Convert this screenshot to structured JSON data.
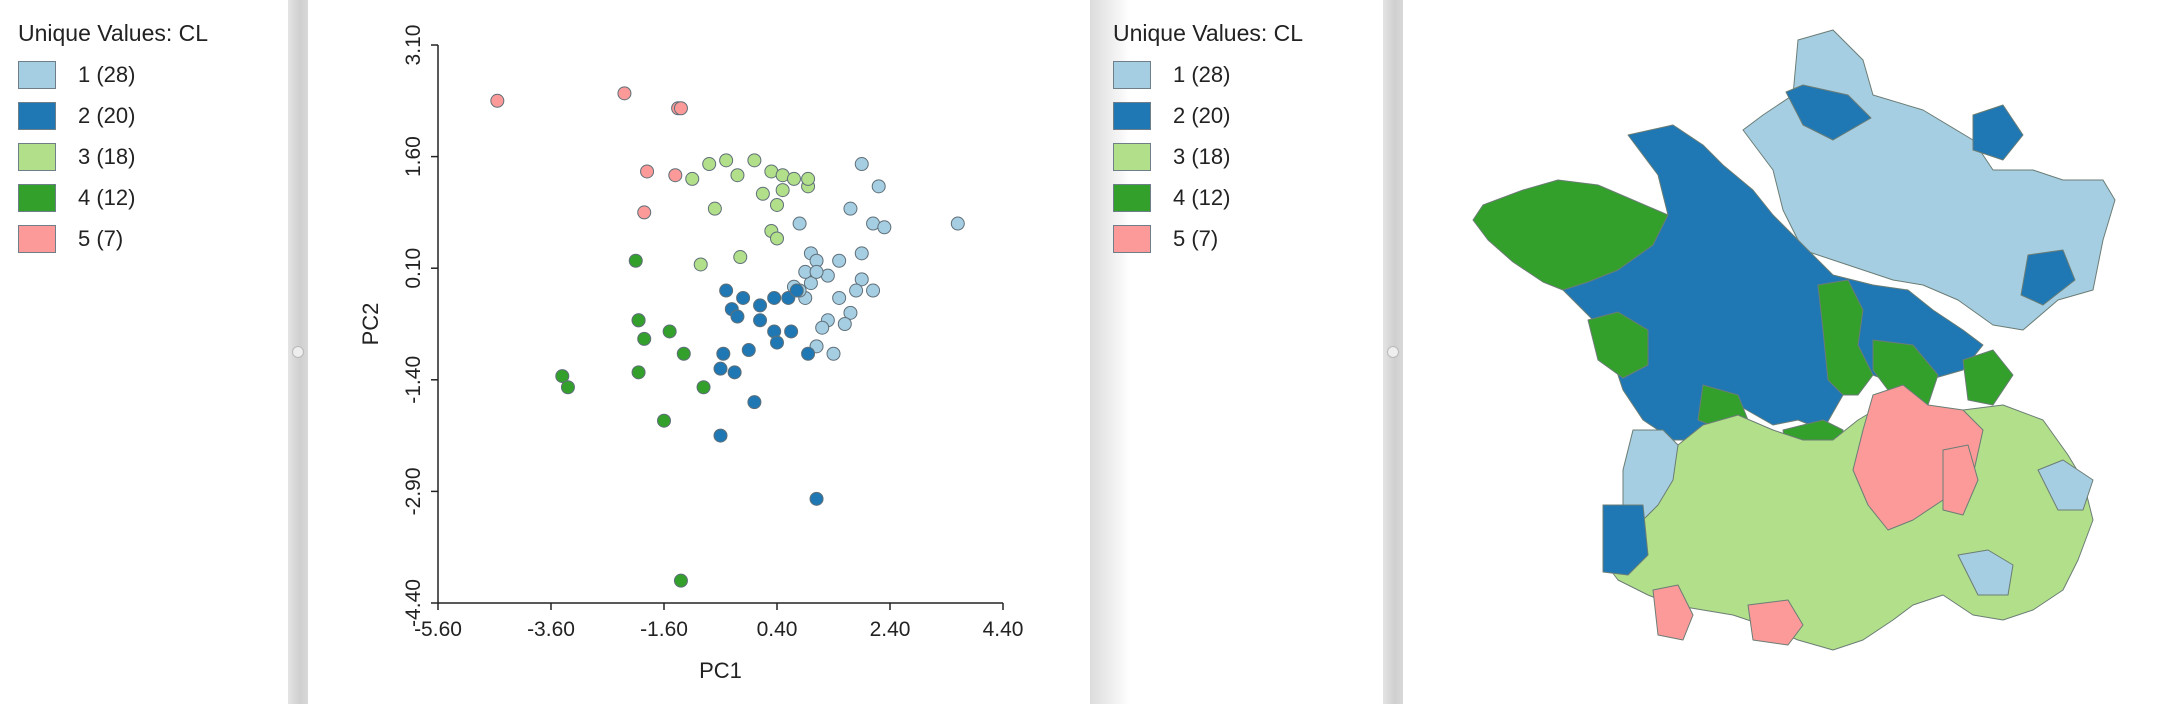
{
  "legend_left": {
    "title": "Unique Values: CL",
    "items": [
      {
        "label": "1 (28)",
        "color": "#a6cee3"
      },
      {
        "label": "2 (20)",
        "color": "#1f78b4"
      },
      {
        "label": "3 (18)",
        "color": "#b2df8a"
      },
      {
        "label": "4 (12)",
        "color": "#33a02c"
      },
      {
        "label": "5 (7)",
        "color": "#fb9a99"
      }
    ]
  },
  "legend_right": {
    "title": "Unique Values: CL",
    "items": [
      {
        "label": "1 (28)",
        "color": "#a6cee3"
      },
      {
        "label": "2 (20)",
        "color": "#1f78b4"
      },
      {
        "label": "3 (18)",
        "color": "#b2df8a"
      },
      {
        "label": "4 (12)",
        "color": "#33a02c"
      },
      {
        "label": "5 (7)",
        "color": "#fb9a99"
      }
    ]
  },
  "chart_data": {
    "type": "scatter",
    "xlabel": "PC1",
    "ylabel": "PC2",
    "xlim": [
      -5.6,
      4.4
    ],
    "ylim": [
      -4.4,
      3.1
    ],
    "x_ticks": [
      "-5.60",
      "-3.60",
      "-1.60",
      "0.40",
      "2.40",
      "4.40"
    ],
    "y_ticks": [
      "-4.40",
      "-2.90",
      "-1.40",
      "0.10",
      "1.60",
      "3.10"
    ],
    "grid": false,
    "series": [
      {
        "cluster": 1,
        "color": "#a6cee3",
        "points": [
          [
            1.9,
            1.5
          ],
          [
            2.2,
            1.2
          ],
          [
            1.7,
            0.9
          ],
          [
            3.6,
            0.7
          ],
          [
            2.1,
            0.7
          ],
          [
            2.3,
            0.65
          ],
          [
            0.8,
            0.7
          ],
          [
            1.9,
            0.3
          ],
          [
            1.5,
            0.2
          ],
          [
            1.0,
            0.3
          ],
          [
            1.1,
            0.2
          ],
          [
            1.3,
            0.0
          ],
          [
            1.9,
            -0.05
          ],
          [
            2.1,
            -0.2
          ],
          [
            1.8,
            -0.2
          ],
          [
            1.5,
            -0.3
          ],
          [
            0.9,
            -0.3
          ],
          [
            1.3,
            -0.6
          ],
          [
            1.2,
            -0.7
          ],
          [
            1.7,
            -0.5
          ],
          [
            1.6,
            -0.65
          ],
          [
            0.8,
            -0.2
          ],
          [
            1.0,
            -0.1
          ],
          [
            0.9,
            0.05
          ],
          [
            1.4,
            -1.05
          ],
          [
            1.1,
            -0.95
          ],
          [
            0.7,
            -0.15
          ],
          [
            1.1,
            0.05
          ]
        ]
      },
      {
        "cluster": 2,
        "color": "#1f78b4",
        "points": [
          [
            -0.5,
            -0.2
          ],
          [
            -0.4,
            -0.45
          ],
          [
            -0.3,
            -0.55
          ],
          [
            -0.2,
            -0.3
          ],
          [
            0.1,
            -0.6
          ],
          [
            0.1,
            -0.4
          ],
          [
            0.35,
            -0.3
          ],
          [
            0.6,
            -0.3
          ],
          [
            0.75,
            -0.2
          ],
          [
            0.65,
            -0.75
          ],
          [
            0.35,
            -0.75
          ],
          [
            0.4,
            -0.9
          ],
          [
            -0.55,
            -1.05
          ],
          [
            -0.35,
            -1.3
          ],
          [
            -0.6,
            -1.25
          ],
          [
            -0.1,
            -1.0
          ],
          [
            0.95,
            -1.05
          ],
          [
            0.0,
            -1.7
          ],
          [
            -0.6,
            -2.15
          ],
          [
            1.1,
            -3.0
          ]
        ]
      },
      {
        "cluster": 3,
        "color": "#b2df8a",
        "points": [
          [
            -0.5,
            1.55
          ],
          [
            -0.8,
            1.5
          ],
          [
            -0.3,
            1.35
          ],
          [
            0.0,
            1.55
          ],
          [
            0.3,
            1.4
          ],
          [
            0.5,
            1.15
          ],
          [
            -1.1,
            1.3
          ],
          [
            0.15,
            1.1
          ],
          [
            0.5,
            1.35
          ],
          [
            0.7,
            1.3
          ],
          [
            0.95,
            1.2
          ],
          [
            0.95,
            1.3
          ],
          [
            0.4,
            0.95
          ],
          [
            -0.7,
            0.9
          ],
          [
            0.3,
            0.6
          ],
          [
            0.4,
            0.5
          ],
          [
            -0.25,
            0.25
          ],
          [
            -0.95,
            0.15
          ]
        ]
      },
      {
        "cluster": 4,
        "color": "#33a02c",
        "points": [
          [
            -2.1,
            0.2
          ],
          [
            -2.05,
            -0.6
          ],
          [
            -2.05,
            -0.6
          ],
          [
            -1.95,
            -0.85
          ],
          [
            -1.5,
            -0.75
          ],
          [
            -1.25,
            -1.05
          ],
          [
            -3.4,
            -1.35
          ],
          [
            -3.3,
            -1.5
          ],
          [
            -2.05,
            -1.3
          ],
          [
            -0.9,
            -1.5
          ],
          [
            -1.6,
            -1.95
          ],
          [
            -1.3,
            -4.1
          ]
        ]
      },
      {
        "cluster": 5,
        "color": "#fb9a99",
        "points": [
          [
            -4.55,
            2.35
          ],
          [
            -2.3,
            2.45
          ],
          [
            -1.35,
            2.25
          ],
          [
            -1.3,
            2.25
          ],
          [
            -1.9,
            1.4
          ],
          [
            -1.4,
            1.35
          ],
          [
            -1.95,
            0.85
          ]
        ]
      }
    ]
  },
  "map": {
    "region_colors": {
      "1": "#a6cee3",
      "2": "#1f78b4",
      "3": "#b2df8a",
      "4": "#33a02c",
      "5": "#fb9a99"
    },
    "outline_color": "#6b7d75"
  }
}
